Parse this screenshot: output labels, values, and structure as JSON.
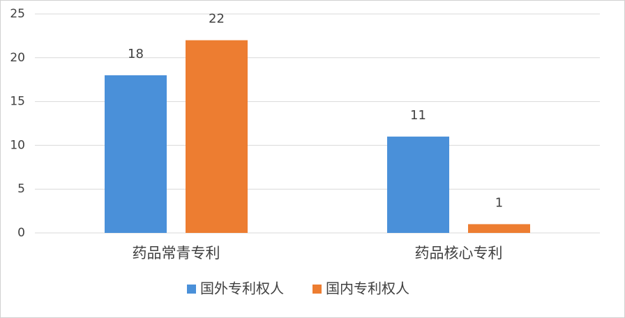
{
  "chart_data": {
    "type": "bar",
    "categories": [
      "药品常青专利",
      "药品核心专利"
    ],
    "series": [
      {
        "name": "国外专利权人",
        "color": "#4a90d9",
        "values": [
          18,
          11
        ]
      },
      {
        "name": "国内专利权人",
        "color": "#ed7d31",
        "values": [
          22,
          1
        ]
      }
    ],
    "ylim": [
      0,
      25
    ],
    "yticks": [
      0,
      5,
      10,
      15,
      20,
      25
    ],
    "grid": true,
    "legend": "bottom"
  }
}
